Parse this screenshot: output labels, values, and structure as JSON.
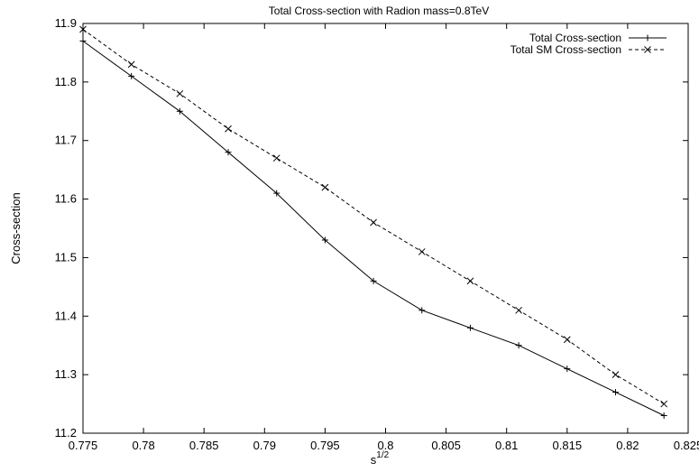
{
  "chart_data": {
    "type": "line",
    "title": "Total Cross-section with Radion mass=0.8TeV",
    "xlabel": "s",
    "xlabel_superscript": "1/2",
    "ylabel": "Cross-section",
    "xlim": [
      0.775,
      0.825
    ],
    "ylim": [
      11.2,
      11.9
    ],
    "x_ticks": [
      "0.775",
      "0.78",
      "0.785",
      "0.79",
      "0.795",
      "0.8",
      "0.805",
      "0.81",
      "0.815",
      "0.82",
      "0.825"
    ],
    "y_ticks": [
      "11.2",
      "11.3",
      "11.4",
      "11.5",
      "11.6",
      "11.7",
      "11.8",
      "11.9"
    ],
    "grid": false,
    "legend_position": "top-right",
    "series": [
      {
        "name": "Total Cross-section",
        "line_style": "solid",
        "marker": "plus",
        "x": [
          0.775,
          0.779,
          0.783,
          0.787,
          0.791,
          0.795,
          0.799,
          0.803,
          0.807,
          0.811,
          0.815,
          0.819,
          0.823
        ],
        "y": [
          11.87,
          11.81,
          11.75,
          11.68,
          11.61,
          11.53,
          11.46,
          11.41,
          11.38,
          11.35,
          11.31,
          11.27,
          11.23
        ]
      },
      {
        "name": "Total SM Cross-section",
        "line_style": "dashed",
        "marker": "cross",
        "x": [
          0.775,
          0.779,
          0.783,
          0.787,
          0.791,
          0.795,
          0.799,
          0.803,
          0.807,
          0.811,
          0.815,
          0.819,
          0.823
        ],
        "y": [
          11.89,
          11.83,
          11.78,
          11.72,
          11.67,
          11.62,
          11.56,
          11.51,
          11.46,
          11.41,
          11.36,
          11.3,
          11.25
        ]
      }
    ]
  }
}
